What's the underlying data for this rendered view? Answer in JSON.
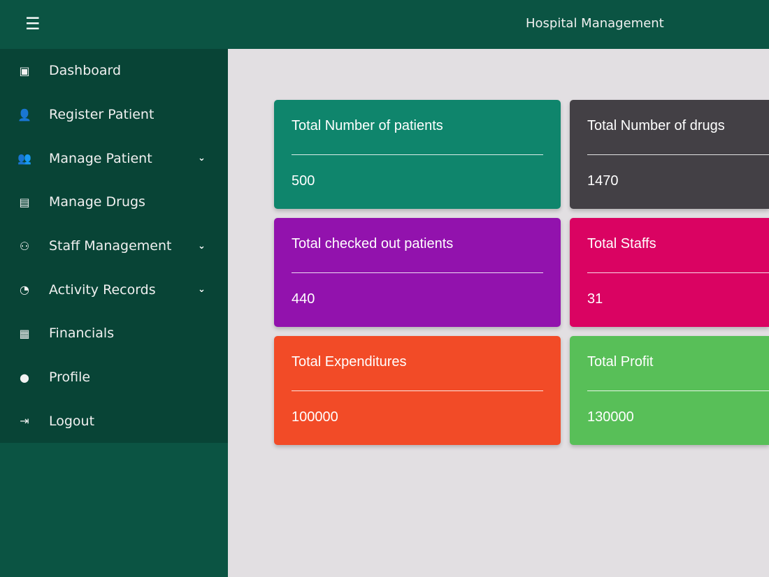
{
  "header": {
    "menu_icon": "☰",
    "title": "Hospital Management"
  },
  "sidebar": {
    "items": [
      {
        "label": "Dashboard",
        "icon": "▣",
        "chevron": ""
      },
      {
        "label": "Register Patient",
        "icon": "👤",
        "chevron": ""
      },
      {
        "label": "Manage Patient",
        "icon": "👥",
        "chevron": "⌄"
      },
      {
        "label": "Manage Drugs",
        "icon": "▤",
        "chevron": ""
      },
      {
        "label": "Staff Management",
        "icon": "⚇",
        "chevron": "⌄"
      },
      {
        "label": "Activity Records",
        "icon": "◔",
        "chevron": "⌄"
      },
      {
        "label": "Financials",
        "icon": "▦",
        "chevron": ""
      },
      {
        "label": "Profile",
        "icon": "●",
        "chevron": ""
      },
      {
        "label": "Logout",
        "icon": "⇥",
        "chevron": ""
      }
    ]
  },
  "cards": [
    {
      "title": "Total Number of patients",
      "value": "500",
      "color": "#0f856c"
    },
    {
      "title": "Total Number of drugs",
      "value": "1470",
      "color": "#434045"
    },
    {
      "title": "Total checked out patients",
      "value": "440",
      "color": "#9212ad"
    },
    {
      "title": "Total Staffs",
      "value": "31",
      "color": "#da0362"
    },
    {
      "title": "Total Expenditures",
      "value": "100000",
      "color": "#f24b27"
    },
    {
      "title": "Total Profit",
      "value": "130000",
      "color": "#58bf58"
    }
  ]
}
